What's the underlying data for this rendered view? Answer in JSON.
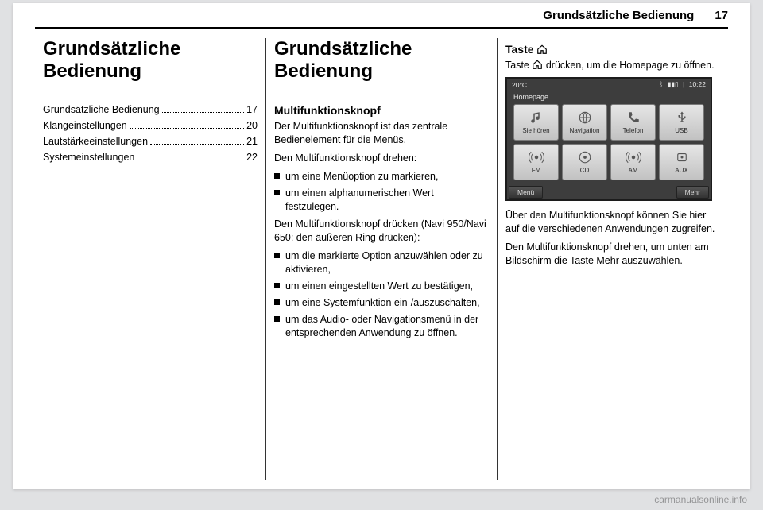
{
  "header": {
    "title": "Grundsätzliche Bedienung",
    "page": "17"
  },
  "col1": {
    "heading": "Grundsätzliche Bedienung",
    "toc": [
      {
        "label": "Grundsätzliche Bedienung",
        "page": "17"
      },
      {
        "label": "Klangeinstellungen",
        "page": "20"
      },
      {
        "label": "Lautstärkeeinstellungen",
        "page": "21"
      },
      {
        "label": "Systemeinstellungen",
        "page": "22"
      }
    ]
  },
  "col2": {
    "heading": "Grundsätzliche Bedienung",
    "sub1": "Multifunktionsknopf",
    "p1": "Der Multifunktionsknopf ist das zentrale Bedienelement für die Menüs.",
    "p2": "Den Multifunktionsknopf drehen:",
    "list1": [
      "um eine Menüoption zu markieren,",
      "um einen alphanumerischen Wert festzulegen."
    ],
    "p3": "Den Multifunktionsknopf drücken (Navi 950/Navi 650: den äußeren Ring drücken):",
    "list2": [
      "um die markierte Option anzuwählen oder zu aktivieren,",
      "um einen eingestellten Wert zu bestätigen,",
      "um eine Systemfunktion ein-/auszuschalten,",
      "um das Audio- oder Navigationsmenü in der entsprechenden Anwendung zu öffnen."
    ]
  },
  "col3": {
    "sub1a": "Taste ",
    "sub1b": "",
    "p1a": "Taste ",
    "p1b": " drücken, um die Homepage zu öffnen.",
    "device": {
      "temp": "20°C",
      "time": "10:22",
      "title": "Homepage",
      "tiles": [
        {
          "label": "Sie hören",
          "icon": "note"
        },
        {
          "label": "Navigation",
          "icon": "globe"
        },
        {
          "label": "Telefon",
          "icon": "phone"
        },
        {
          "label": "USB",
          "icon": "usb"
        },
        {
          "label": "FM",
          "icon": "radio"
        },
        {
          "label": "CD",
          "icon": "disc"
        },
        {
          "label": "AM",
          "icon": "radio"
        },
        {
          "label": "AUX",
          "icon": "aux"
        }
      ],
      "btn_left": "Menü",
      "btn_right": "Mehr"
    },
    "p2": "Über den Multifunktionsknopf können Sie hier auf die verschiedenen Anwendungen zugreifen.",
    "p3": "Den Multifunktionsknopf drehen, um unten am Bildschirm die Taste Mehr auszuwählen."
  },
  "watermark": "carmanualsonline.info"
}
